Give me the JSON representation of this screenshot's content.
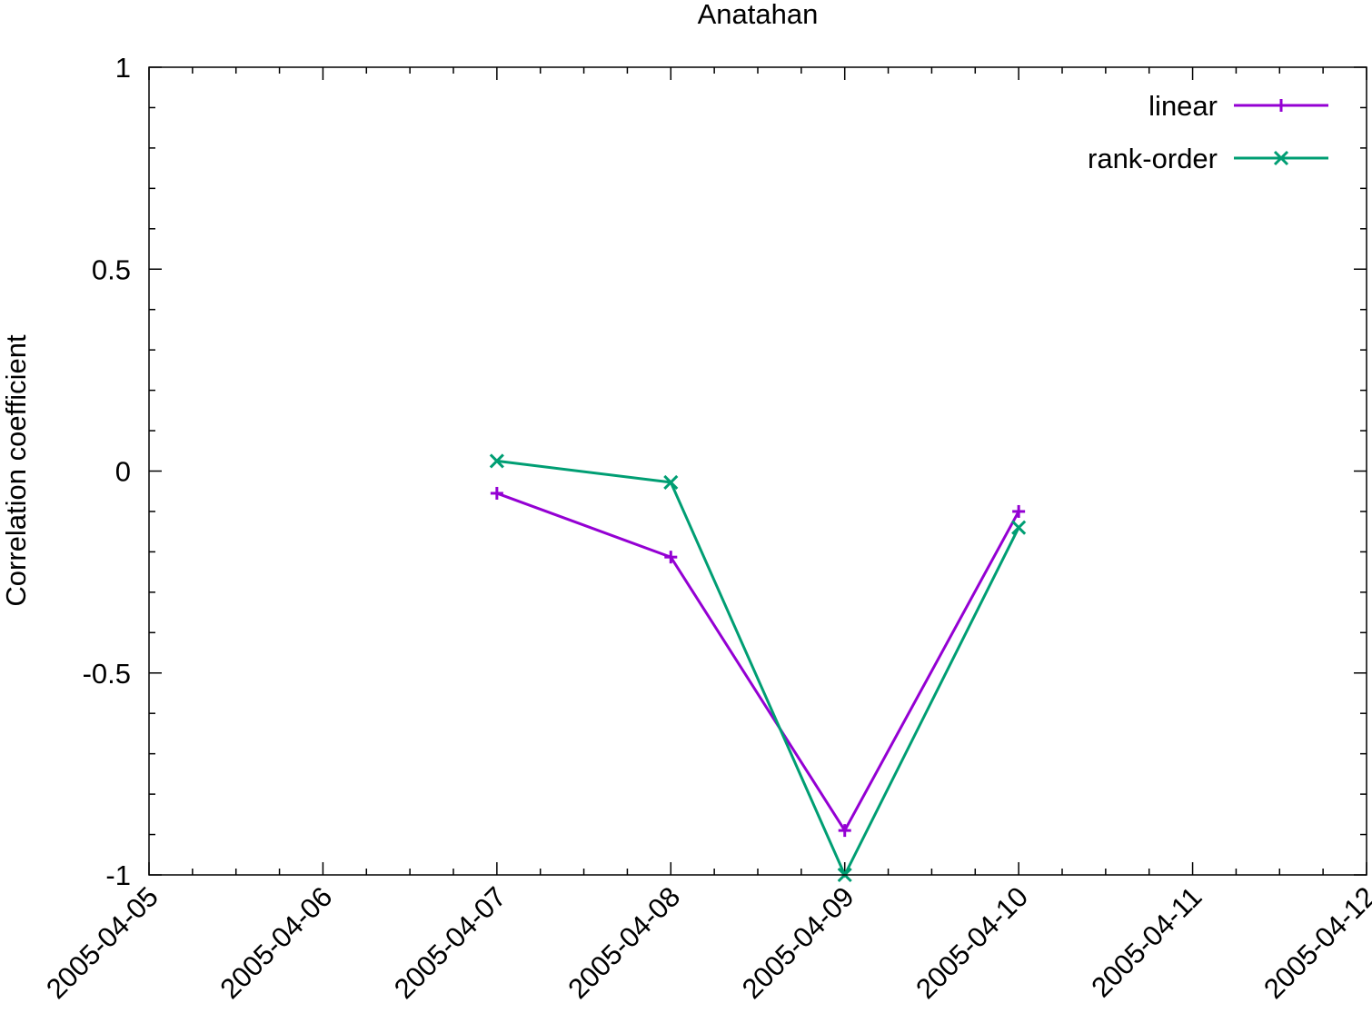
{
  "chart_data": {
    "type": "line",
    "title": "Anatahan",
    "xlabel": "",
    "ylabel": "Correlation coefficient",
    "x_tick_labels": [
      "2005-04-05",
      "2005-04-06",
      "2005-04-07",
      "2005-04-08",
      "2005-04-09",
      "2005-04-10",
      "2005-04-11",
      "2005-04-12"
    ],
    "y_tick_labels": [
      "1",
      "0.5",
      "0",
      "-0.5",
      "-1"
    ],
    "xlim": [
      "2005-04-05",
      "2005-04-12"
    ],
    "ylim": [
      -1,
      1
    ],
    "grid": false,
    "legend_position": "top-right",
    "series": [
      {
        "name": "linear",
        "color": "#9400d3",
        "marker": "plus",
        "x": [
          "2005-04-07",
          "2005-04-08",
          "2005-04-09",
          "2005-04-10"
        ],
        "values": [
          -0.055,
          -0.213,
          -0.89,
          -0.1
        ]
      },
      {
        "name": "rank-order",
        "color": "#009e73",
        "marker": "cross",
        "x": [
          "2005-04-07",
          "2005-04-08",
          "2005-04-09",
          "2005-04-10"
        ],
        "values": [
          0.025,
          -0.028,
          -1.0,
          -0.14
        ]
      }
    ]
  }
}
